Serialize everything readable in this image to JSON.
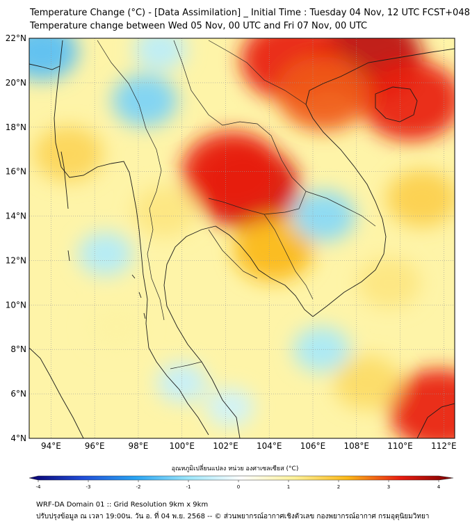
{
  "title": {
    "line1": "Temperature Change (°C) - [Data Assimilation] _ Initial Time : Tuesday 04 Nov, 12 UTC FCST+048",
    "line2": "Temperature change between Wed 05 Nov, 00 UTC and Fri 07 Nov, 00 UTC"
  },
  "map": {
    "lat_labels": [
      "22°N",
      "20°N",
      "18°N",
      "16°N",
      "14°N",
      "12°N",
      "10°N",
      "8°N",
      "6°N",
      "4°N"
    ],
    "lon_labels": [
      "94°E",
      "96°E",
      "98°E",
      "100°E",
      "102°E",
      "104°E",
      "106°E",
      "108°E",
      "110°E",
      "112°E"
    ],
    "lat_range": [
      4,
      22
    ],
    "lon_range": [
      93,
      112.5
    ],
    "field_features": [
      {
        "lon": 103.0,
        "lat": 15.3,
        "value": 3.2
      },
      {
        "lon": 102.3,
        "lat": 16.0,
        "value": 3.0
      },
      {
        "lon": 108.5,
        "lat": 21.2,
        "value": 3.4
      },
      {
        "lon": 105.0,
        "lat": 21.0,
        "value": 3.0
      },
      {
        "lon": 110.5,
        "lat": 19.2,
        "value": 3.0
      },
      {
        "lon": 106.5,
        "lat": 19.5,
        "value": 2.6
      },
      {
        "lon": 111.8,
        "lat": 5.3,
        "value": 3.0
      },
      {
        "lon": 104.2,
        "lat": 12.5,
        "value": 2.0
      },
      {
        "lon": 98.3,
        "lat": 19.2,
        "value": -1.3
      },
      {
        "lon": 93.6,
        "lat": 21.4,
        "value": -1.6
      },
      {
        "lon": 106.5,
        "lat": 14.0,
        "value": -1.2
      },
      {
        "lon": 96.5,
        "lat": 12.3,
        "value": -0.8
      },
      {
        "lon": 106.4,
        "lat": 8.0,
        "value": -0.9
      },
      {
        "lon": 100.0,
        "lat": 6.5,
        "value": -0.6
      },
      {
        "lon": 102.2,
        "lat": 5.4,
        "value": -0.5
      },
      {
        "lon": 99.0,
        "lat": 21.5,
        "value": -0.7
      },
      {
        "lon": 94.8,
        "lat": 16.8,
        "value": 1.5
      },
      {
        "lon": 99.2,
        "lat": 14.2,
        "value": 1.2
      },
      {
        "lon": 109.5,
        "lat": 11.0,
        "value": 1.2
      },
      {
        "lon": 108.5,
        "lat": 6.5,
        "value": 1.4
      },
      {
        "lon": 97.0,
        "lat": 9.0,
        "value": 0.9
      },
      {
        "lon": 111.0,
        "lat": 14.8,
        "value": 1.6
      }
    ]
  },
  "colorbar": {
    "title": "อุณหภูมิเปลี่ยนแปลง หน่วย องศาเซลเซียส (°C)",
    "ticks": [
      "-4",
      "-3",
      "-2",
      "-1",
      "0",
      "1",
      "2",
      "3",
      "4"
    ],
    "vmin": -4,
    "vmax": 4
  },
  "footer": {
    "line1": "WRF-DA Domain 01 :: Grid Resolution 9km x 9km",
    "line2": "ปรับปรุงข้อมูล ณ เวลา 19:00น. วัน อ. ที่ 04 พ.ย. 2568 -- © ส่วนพยากรณ์อากาศเชิงตัวเลข กองพยากรณ์อากาศ กรมอุตุนิยมวิทยา"
  }
}
